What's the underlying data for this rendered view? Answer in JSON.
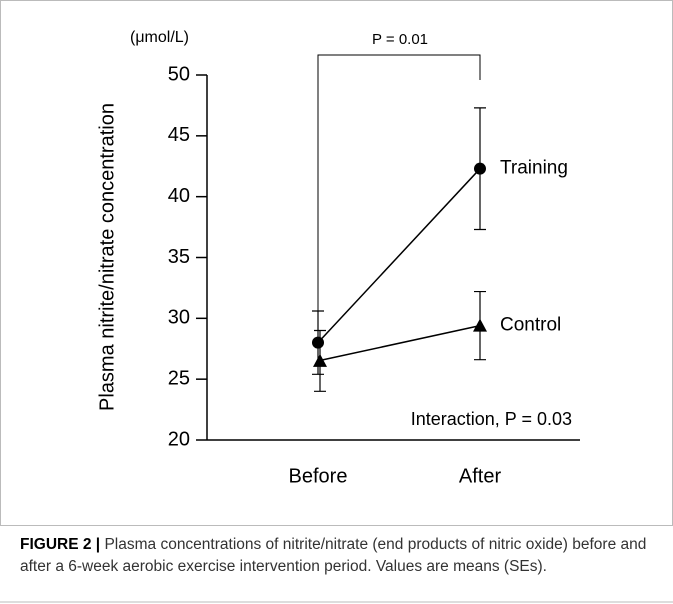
{
  "chart_data": {
    "type": "line",
    "unit_label": "(μmol/L)",
    "ylabel": "Plasma nitrite/nitrate concentration",
    "categories": [
      "Before",
      "After"
    ],
    "series": [
      {
        "name": "Training",
        "color": "#000000",
        "marker": "circle",
        "values": [
          28.0,
          42.3
        ],
        "errors": [
          2.6,
          5.0
        ]
      },
      {
        "name": "Control",
        "color": "#000000",
        "marker": "triangle",
        "values": [
          26.5,
          29.4
        ],
        "errors": [
          2.5,
          2.8
        ]
      }
    ],
    "ylim": [
      20,
      50
    ],
    "yticks": [
      20,
      25,
      30,
      35,
      40,
      45,
      50
    ],
    "annotations": [
      "P = 0.01",
      "Interaction, P = 0.03"
    ]
  },
  "caption": {
    "label": "FIGURE 2 |",
    "text": "Plasma concentrations of nitrite/nitrate (end products of nitric oxide) before and after a 6-week aerobic exercise intervention period. Values are means (SEs)."
  }
}
